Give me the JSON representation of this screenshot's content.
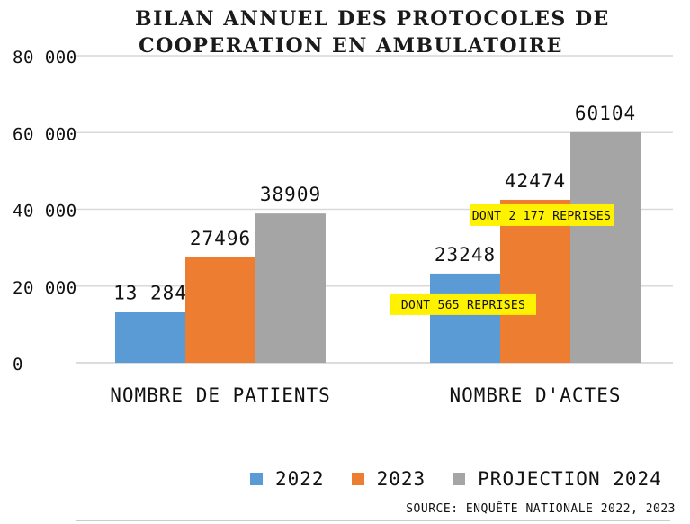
{
  "chart_data": {
    "type": "bar",
    "title_lines": [
      "BILAN ANNUEL DES PROTOCOLES DE",
      "COOPERATION EN AMBULATOIRE"
    ],
    "categories": [
      "NOMBRE DE PATIENTS",
      "NOMBRE D'ACTES"
    ],
    "series": [
      {
        "name": "2022",
        "color": "#5b9bd5",
        "values": [
          13284,
          23248
        ],
        "labels": [
          "13 284",
          "23248"
        ]
      },
      {
        "name": "2023",
        "color": "#ed7d31",
        "values": [
          27496,
          42474
        ],
        "labels": [
          "27496",
          "42474"
        ]
      },
      {
        "name": "PROJECTION 2024",
        "color": "#a5a5a5",
        "values": [
          38909,
          60104
        ],
        "labels": [
          "38909",
          "60104"
        ]
      }
    ],
    "y_ticks": [
      0,
      20000,
      40000,
      60000,
      80000
    ],
    "y_tick_labels": [
      "0",
      "20 000",
      "40 000",
      "60 000",
      "80 000"
    ],
    "ylim": [
      0,
      80000
    ],
    "grid": true,
    "legend_position": "bottom",
    "annotations": [
      {
        "text": "DONT 565 REPRISES",
        "series": "2022",
        "category": "NOMBRE D'ACTES",
        "background": "#fff200"
      },
      {
        "text": "DONT 2 177 REPRISES",
        "series": "2023",
        "category": "NOMBRE D'ACTES",
        "background": "#fff200"
      }
    ]
  },
  "source": "SOURCE: ENQUÊTE NATIONALE 2022, 2023"
}
